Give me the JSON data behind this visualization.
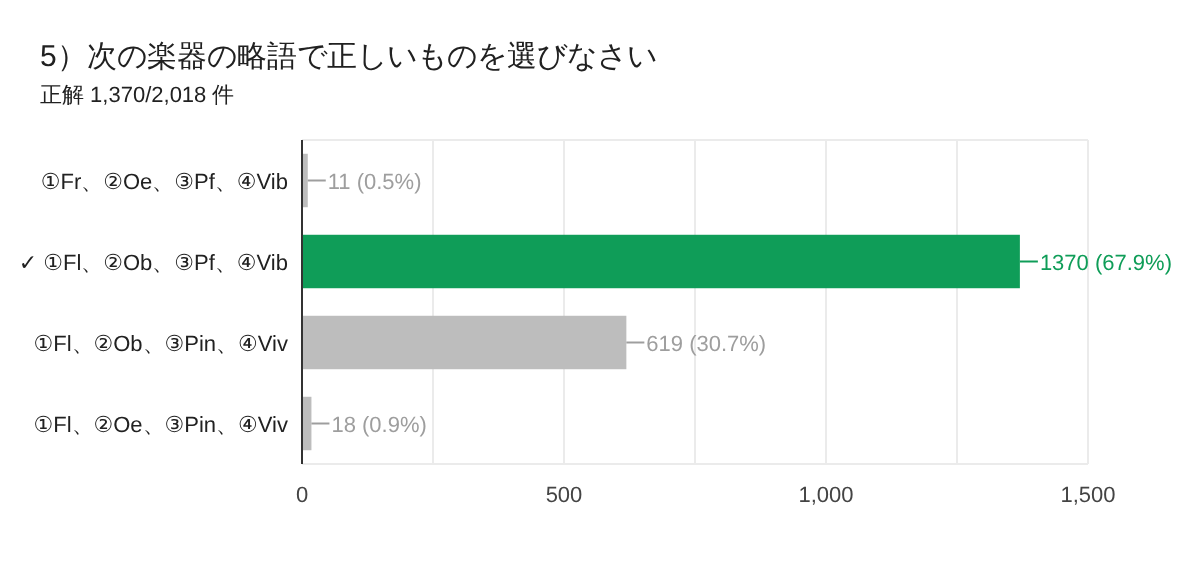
{
  "chart_data": {
    "type": "bar",
    "orientation": "horizontal",
    "title": "5）次の楽器の略語で正しいものを選びなさい",
    "subtitle": "正解 1,370/2,018 件",
    "categories": [
      "①Fr、②Oe、③Pf、④Vib",
      "✓ ①Fl、②Ob、③Pf、④Vib",
      "①Fl、②Ob、③Pin、④Viv",
      "①Fl、②Oe、③Pin、④Viv"
    ],
    "values": [
      11,
      1370,
      619,
      18
    ],
    "colors": [
      "#bdbdbd",
      "#0f9d58",
      "#bdbdbd",
      "#bdbdbd"
    ],
    "value_labels": [
      "11 (0.5%)",
      "1370 (67.9%)",
      "619 (30.7%)",
      "18 (0.9%)"
    ],
    "xlim": [
      0,
      1500
    ],
    "xticks": [
      0,
      {
        "value": 250,
        "label": null
      },
      500,
      {
        "value": 750,
        "label": null
      },
      {
        "value": 1000,
        "label": "1,000"
      },
      {
        "value": 1250,
        "label": null
      },
      {
        "value": 1500,
        "label": "1,500"
      }
    ],
    "grid": "x"
  }
}
